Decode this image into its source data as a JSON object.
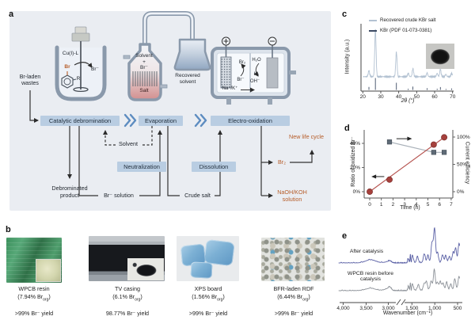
{
  "panels": {
    "a": {
      "label": "a",
      "waste_source": "Br-laden wastes",
      "reactor": {
        "catalyst": "Cu(I)-L",
        "aryl_br": "Br",
        "aryl_r": "R",
        "released_ion": "Br⁻"
      },
      "evaporator": {
        "line1": "Solvent",
        "plus": "+",
        "line2": "Br⁻",
        "salt": "Salt",
        "recovered_line1": "Recovered",
        "recovered_line2": "solvent"
      },
      "cell": {
        "anode_sign": "+",
        "cathode_sign": "−",
        "br2": "Br₂",
        "br_ion": "Br⁻",
        "h2o": "H₂O",
        "h2": "H₂",
        "oh": "OH⁻",
        "cations": "Na⁺/K⁺"
      },
      "steps": [
        "Catalytic debromination",
        "Evaporation",
        "Electro-oxidation"
      ],
      "sub_steps": [
        "Neutralization",
        "Dissolution"
      ],
      "solvent_recycle": "Solvent",
      "outputs": {
        "debrominated_1": "Debrominated",
        "debrominated_2": "product",
        "br_solution": "Br⁻ solution",
        "crude_salt": "Crude salt",
        "br2": "Br₂",
        "new_life": "New life cycle",
        "naoh_1": "NaOH/KOH",
        "naoh_2": "solution"
      }
    },
    "b": {
      "label": "b",
      "samples": [
        {
          "name": "WPCB resin",
          "br_open": "(7.94% Br",
          "br_sub": "org",
          "br_close": ")",
          "yield": ">99% Br⁻ yield"
        },
        {
          "name": "TV casing",
          "br_open": "(6.1% Br",
          "br_sub": "org",
          "br_close": ")",
          "yield": "98.77% Br⁻ yield"
        },
        {
          "name": "XPS board",
          "br_open": "(1.56% Br",
          "br_sub": "org",
          "br_close": ")",
          "yield": ">99% Br⁻ yield"
        },
        {
          "name": "BFR-laden RDF",
          "br_open": "(6.44% Br",
          "br_sub": "org",
          "br_close": ")",
          "yield": ">99% Br⁻ yield"
        }
      ]
    },
    "c": {
      "label": "c"
    },
    "d": {
      "label": "d"
    },
    "e": {
      "label": "e"
    }
  },
  "colors": {
    "panel_a_bg": "#eaedf2",
    "flow_box": "#b9cde2",
    "accent_orange": "#b65c28",
    "vessel_stroke": "#8a99ab",
    "xrd_trace": "#b3c2d2",
    "xrd_ref": "#3c4a63",
    "ratio_red": "#a6403c",
    "efficiency_gray": "#5f6b77",
    "ftir_after": "#5a60a5",
    "ftir_before": "#8b9097"
  },
  "chart_data": [
    {
      "id": "xrd",
      "type": "line",
      "xlabel": "2θ (°)",
      "ylabel": "Intensity (a.u.)",
      "xlim": [
        20,
        70
      ],
      "xticks": [
        20,
        30,
        40,
        50,
        60,
        70
      ],
      "legend": [
        {
          "label": "Recovered crude KBr salt",
          "color": "#b3c2d2"
        },
        {
          "label": "KBr (PDF 01-073-0381)",
          "color": "#3c4a63"
        }
      ],
      "peaks_2theta": [
        23.4,
        27.0,
        38.7,
        45.3,
        47.9,
        55.8,
        61.4,
        63.2,
        66.3,
        69.5
      ],
      "peak_rel_intensity": [
        13,
        100,
        52,
        7,
        17,
        8,
        7,
        15,
        5,
        7
      ],
      "reference_sticks_2theta": [
        23.4,
        27.0,
        38.7,
        45.3,
        47.9,
        55.8,
        61.4,
        63.2,
        66.3,
        69.5
      ],
      "reference_rel_intensity": [
        25,
        100,
        60,
        10,
        28,
        14,
        10,
        24,
        8,
        12
      ]
    },
    {
      "id": "oxidation",
      "type": "scatter",
      "xlabel": "Time (h)",
      "ylabel_left": "Ratio of oxidized Br⁻",
      "ylabel_right": "Current efficiency",
      "xticks": [
        0,
        1,
        2,
        3,
        4,
        5,
        6,
        7
      ],
      "yticks_left": [
        "0%",
        "20%",
        "40%"
      ],
      "yticks_right": [
        "0%",
        "50%",
        "100%"
      ],
      "series": [
        {
          "name": "Ratio of oxidized Br⁻",
          "axis": "left",
          "marker": "circle",
          "color": "#a6403c",
          "points": [
            [
              0,
              0
            ],
            [
              1.7,
              10
            ],
            [
              5.5,
              39
            ],
            [
              6.4,
              45
            ]
          ]
        },
        {
          "name": "Current efficiency",
          "axis": "right",
          "marker": "square",
          "color": "#5f6b77",
          "points": [
            [
              1.7,
              91
            ],
            [
              5.5,
              72
            ],
            [
              6.4,
              72
            ]
          ]
        }
      ],
      "annotations": [
        {
          "axis": "right",
          "from": [
            2.3,
            97
          ],
          "to": [
            3.5,
            97
          ]
        },
        {
          "axis": "left",
          "from": [
            1.25,
            12.5
          ],
          "to": [
            0.28,
            12.5
          ]
        }
      ]
    },
    {
      "id": "ftir",
      "type": "line",
      "xlabel": "Wavenumber (cm⁻¹)",
      "xticks_labels": [
        "4,000",
        "3,500",
        "3,000",
        "1,500",
        "1,000",
        "500"
      ],
      "axis_break_between": [
        "3,000",
        "1,500"
      ],
      "series": [
        {
          "name": "After catalysis",
          "color": "#5a60a5",
          "peaks_cm": [
            3400,
            2925,
            1730,
            1600,
            1490,
            1380,
            1230,
            1150,
            1060,
            1005,
            940,
            830,
            760,
            680,
            600,
            545,
            470
          ],
          "peak_heights": [
            4,
            3,
            5,
            10,
            9,
            7,
            11,
            9,
            25,
            43,
            12,
            10,
            8,
            8,
            12,
            18,
            24
          ]
        },
        {
          "name": "WPCB resin before catalysis",
          "color": "#8b9097",
          "peaks_cm": [
            3400,
            2925,
            1720,
            1600,
            1490,
            1360,
            1230,
            1180,
            1080,
            1010,
            940,
            880,
            820,
            740,
            650,
            560,
            470
          ],
          "peak_heights": [
            3,
            5,
            5,
            9,
            8,
            7,
            9,
            10,
            12,
            26,
            10,
            11,
            9,
            10,
            8,
            14,
            18
          ]
        }
      ]
    }
  ]
}
